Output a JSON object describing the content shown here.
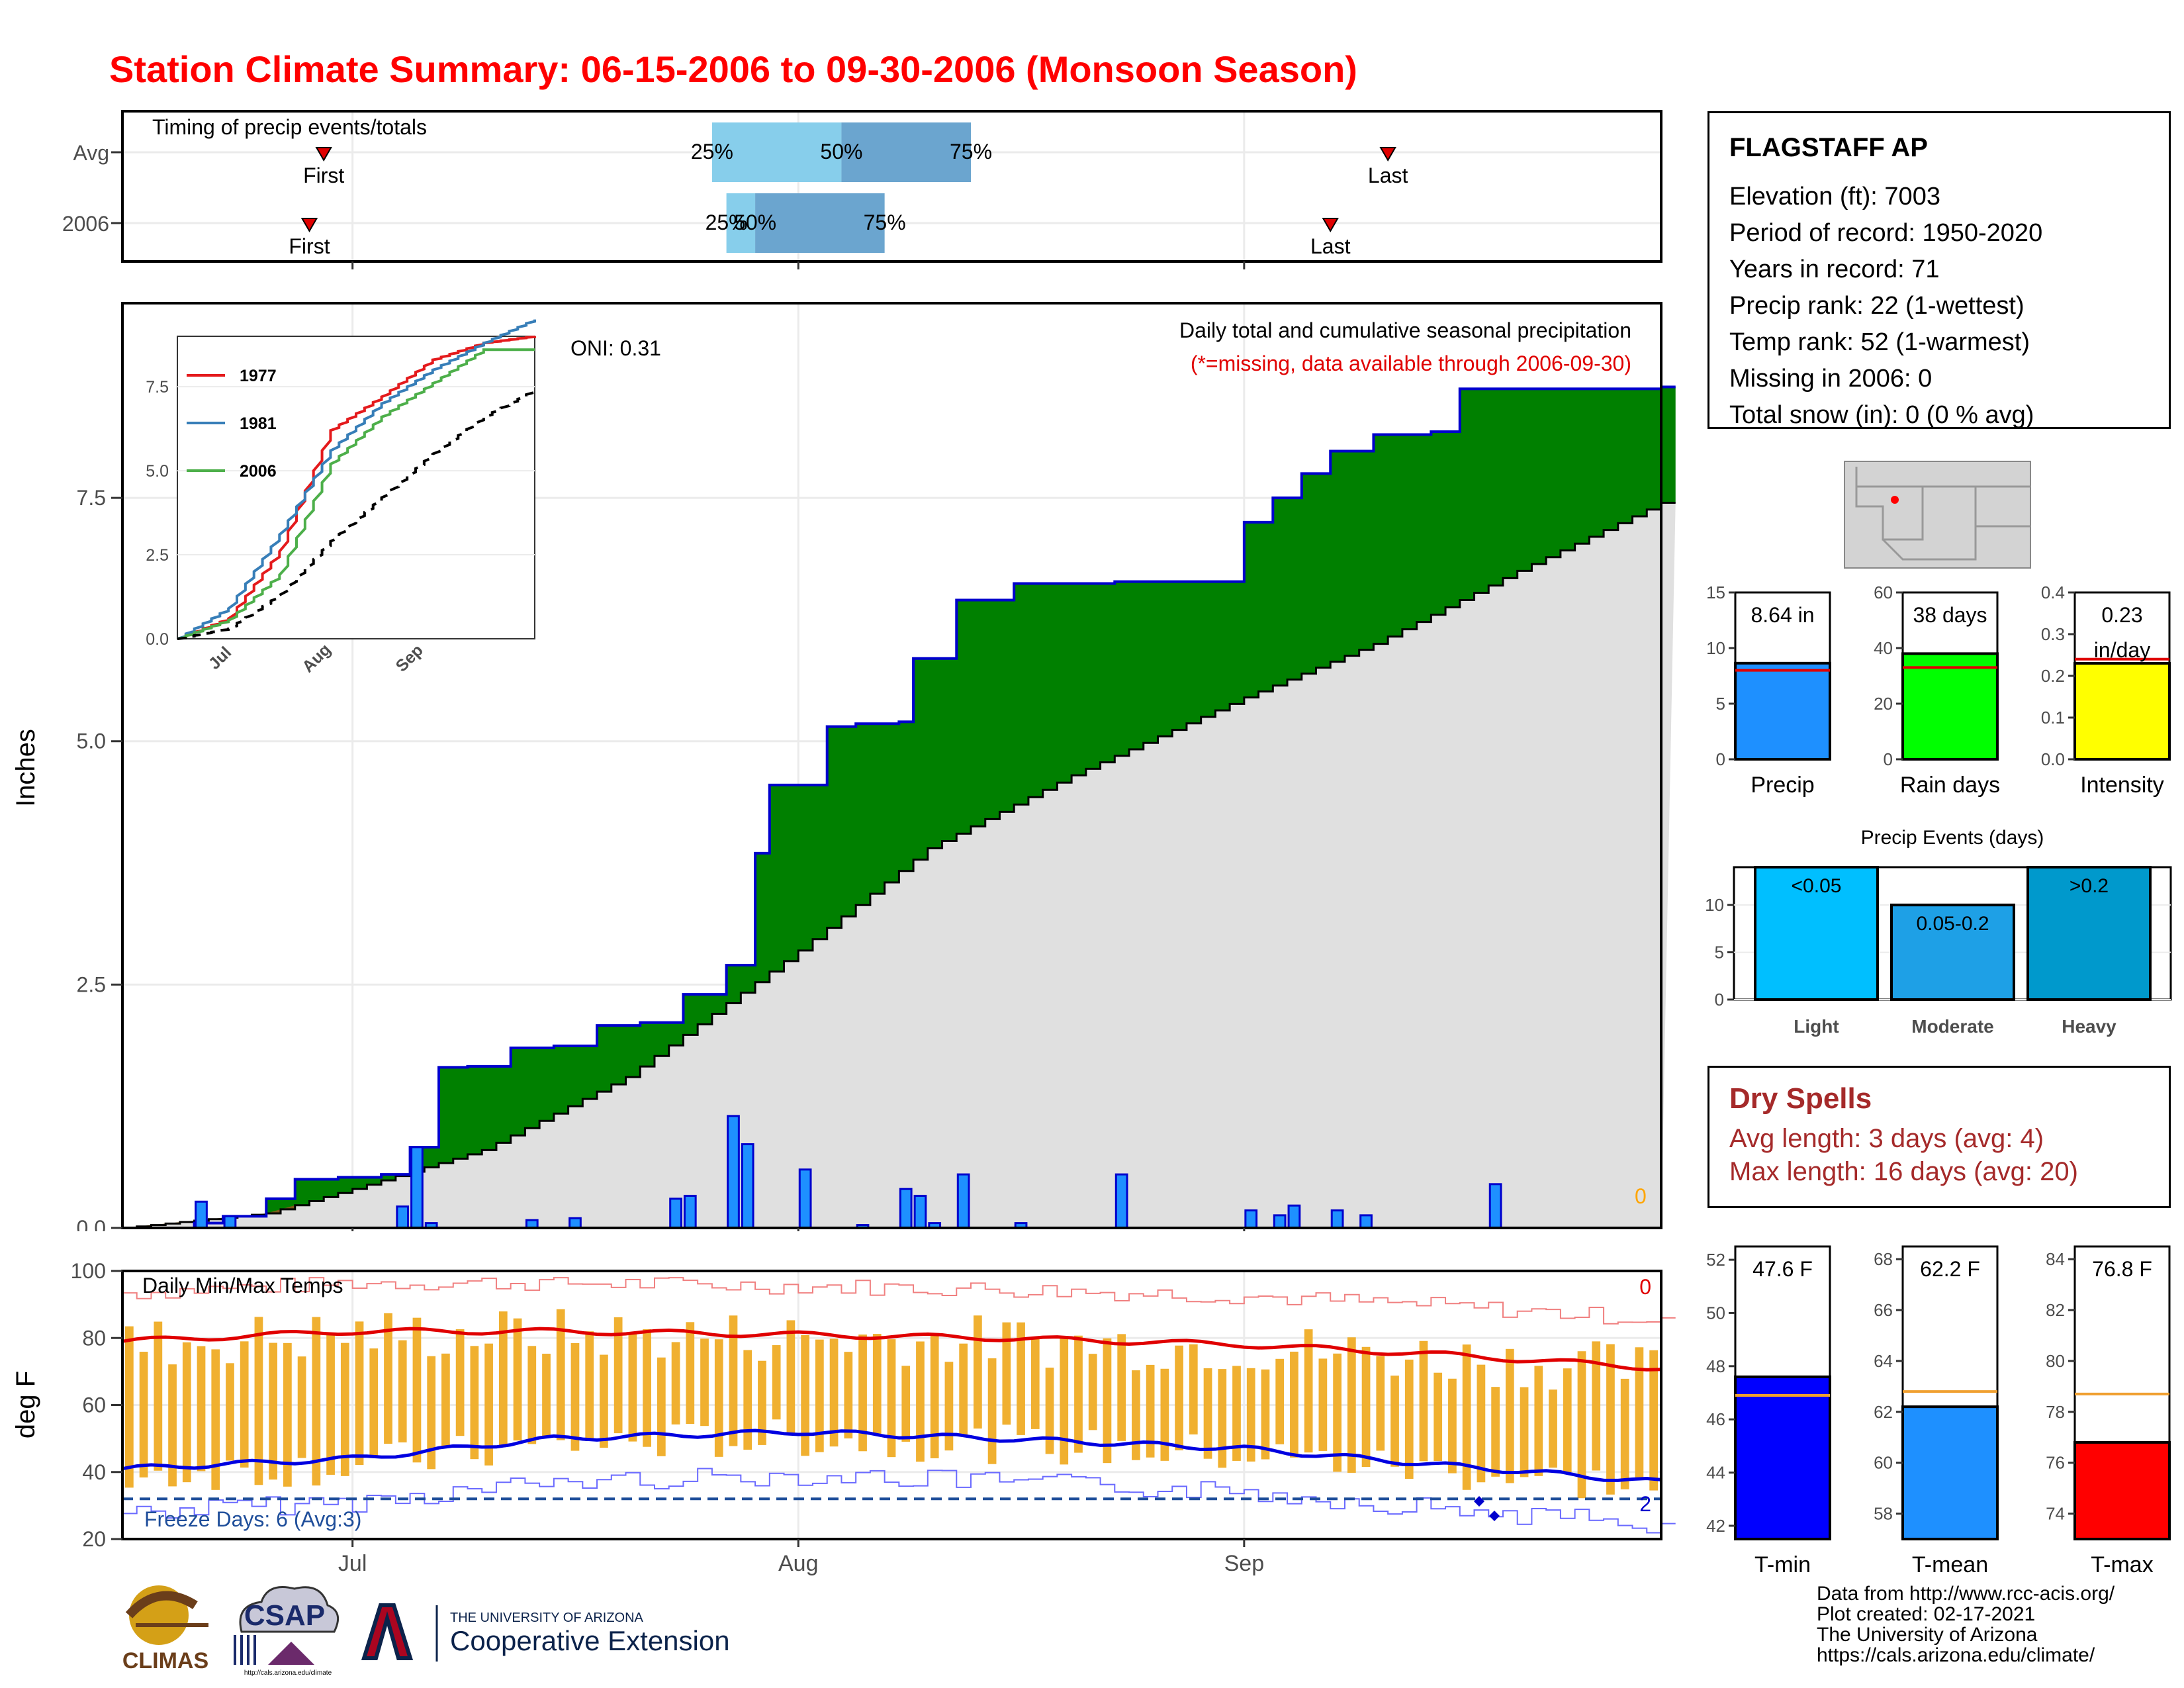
{
  "title": "Station Climate Summary: 06-15-2006 to 09-30-2006 (Monsoon Season)",
  "station": {
    "name": "FLAGSTAFF AP",
    "lines": [
      "Elevation (ft): 7003",
      "Period of record: 1950-2020",
      "Years in record: 71",
      "Precip rank: 22 (1-wettest)",
      "Temp rank: 52 (1-warmest)",
      "Missing in 2006: 0",
      "Total snow (in): 0 (0 % avg)"
    ]
  },
  "timing": {
    "label": "Timing of precip events/totals",
    "rows": [
      "Avg",
      "2006"
    ],
    "first_label": "First",
    "last_label": "Last",
    "pct_labels": [
      "25%",
      "50%",
      "75%"
    ]
  },
  "main": {
    "ylabel": "Inches",
    "yticks": [
      "0.0",
      "2.5",
      "5.0",
      "7.5"
    ],
    "xticks": [
      "Jul",
      "Aug",
      "Sep"
    ],
    "annotation": "Daily total and cumulative seasonal precipitation",
    "missing_note": "(*=missing, data available through 2006-09-30)",
    "oni": "ONI: 0.31",
    "zero_count": "0"
  },
  "inset": {
    "yticks": [
      "0.0",
      "2.5",
      "5.0",
      "7.5"
    ],
    "xticks": [
      "Jul",
      "Aug",
      "Sep"
    ],
    "legend": [
      {
        "name": "1977",
        "color": "#e41a1c"
      },
      {
        "name": "1981",
        "color": "#377eb8"
      },
      {
        "name": "2006",
        "color": "#4daf4a"
      }
    ]
  },
  "temps": {
    "label": "Daily Min/Max Temps",
    "ylabel": "deg F",
    "yticks": [
      "20",
      "40",
      "60",
      "80",
      "100"
    ],
    "freeze_text": "Freeze Days: 6 (Avg:3)",
    "top_count": "0",
    "bottom_count": "2"
  },
  "bars_precip": {
    "items": [
      {
        "label": "Precip",
        "top": "8.64 in",
        "ticks": [
          "0",
          "5",
          "10",
          "15"
        ]
      },
      {
        "label": "Rain days",
        "top": "38 days",
        "ticks": [
          "0",
          "20",
          "40",
          "60"
        ]
      },
      {
        "label": "Intensity",
        "top": "0.23",
        "top2": "in/day",
        "ticks": [
          "0.0",
          "0.1",
          "0.2",
          "0.3",
          "0.4"
        ]
      }
    ]
  },
  "events": {
    "title": "Precip Events (days)",
    "ticks": [
      "0",
      "5",
      "10"
    ],
    "items": [
      {
        "label": "Light",
        "top": "<0.05"
      },
      {
        "label": "Moderate",
        "top": "0.05-0.2"
      },
      {
        "label": "Heavy",
        "top": ">0.2"
      }
    ]
  },
  "dry": {
    "title": "Dry Spells",
    "avg": "Avg length: 3 days (avg: 4)",
    "max": "Max length: 16 days (avg: 20)"
  },
  "temp_bars": {
    "items": [
      {
        "label": "T-min",
        "top": "47.6 F",
        "ticks": [
          "42",
          "44",
          "46",
          "48",
          "50",
          "52"
        ]
      },
      {
        "label": "T-mean",
        "top": "62.2 F",
        "ticks": [
          "58",
          "60",
          "62",
          "64",
          "66",
          "68"
        ]
      },
      {
        "label": "T-max",
        "top": "76.8 F",
        "ticks": [
          "74",
          "76",
          "78",
          "80",
          "82",
          "84"
        ]
      }
    ]
  },
  "footer": {
    "lines": [
      "Data from http://www.rcc-acis.org/",
      "Plot created: 02-17-2021",
      "The University of Arizona",
      "https://cals.arizona.edu/climate/"
    ]
  },
  "logos": {
    "climas": "CLIMAS",
    "csap": "CSAP",
    "csap_url": "http://cals.arizona.edu/climate",
    "ua_top": "THE UNIVERSITY OF ARIZONA",
    "ua_bottom": "Cooperative Extension"
  },
  "chart_data": [
    {
      "type": "bar",
      "title": "Timing of precip events/totals",
      "categories": [
        "Avg",
        "2006"
      ],
      "series": [
        {
          "name": "25%",
          "values": [
            "2006-07-26",
            "2006-07-27"
          ]
        },
        {
          "name": "50%",
          "values": [
            "2006-08-04",
            "2006-07-29"
          ]
        },
        {
          "name": "75%",
          "values": [
            "2006-08-13",
            "2006-08-07"
          ]
        },
        {
          "name": "First",
          "values": [
            "2006-06-29",
            "2006-06-28"
          ]
        },
        {
          "name": "Last",
          "values": [
            "2006-09-11",
            "2006-09-07"
          ]
        }
      ]
    },
    {
      "type": "area",
      "title": "Daily total and cumulative seasonal precipitation",
      "ylabel": "Inches",
      "ylim": [
        0,
        9.5
      ],
      "x_range": [
        "2006-06-15",
        "2006-09-30"
      ],
      "series": [
        {
          "name": "2006 cumulative",
          "x": [
            "2006-06-15",
            "2006-06-20",
            "2006-06-22",
            "2006-06-25",
            "2006-06-27",
            "2006-06-30",
            "2006-07-03",
            "2006-07-05",
            "2006-07-07",
            "2006-07-09",
            "2006-07-12",
            "2006-07-15",
            "2006-07-18",
            "2006-07-21",
            "2006-07-24",
            "2006-07-27",
            "2006-07-29",
            "2006-07-30",
            "2006-08-03",
            "2006-08-05",
            "2006-08-08",
            "2006-08-09",
            "2006-08-12",
            "2006-08-16",
            "2006-08-23",
            "2006-09-01",
            "2006-09-03",
            "2006-09-05",
            "2006-09-07",
            "2006-09-10",
            "2006-09-14",
            "2006-09-16",
            "2006-09-30"
          ],
          "values": [
            0,
            0.05,
            0.12,
            0.3,
            0.5,
            0.52,
            0.55,
            0.83,
            1.65,
            1.66,
            1.85,
            1.87,
            2.08,
            2.11,
            2.4,
            2.7,
            3.85,
            4.55,
            5.15,
            5.18,
            5.2,
            5.85,
            6.45,
            6.62,
            6.64,
            7.25,
            7.5,
            7.75,
            7.98,
            8.15,
            8.18,
            8.62,
            8.64
          ]
        },
        {
          "name": "Average cumulative",
          "x": [
            "2006-06-15",
            "2006-06-25",
            "2006-07-01",
            "2006-07-10",
            "2006-07-20",
            "2006-08-01",
            "2006-08-10",
            "2006-08-20",
            "2006-09-01",
            "2006-09-10",
            "2006-09-20",
            "2006-09-30"
          ],
          "values": [
            0,
            0.15,
            0.4,
            0.8,
            1.55,
            2.85,
            3.9,
            4.65,
            5.45,
            6.0,
            6.75,
            7.45
          ]
        }
      ],
      "daily_bars": {
        "x": [
          "2006-06-20",
          "2006-06-22",
          "2006-07-04",
          "2006-07-05",
          "2006-07-06",
          "2006-07-13",
          "2006-07-16",
          "2006-07-23",
          "2006-07-24",
          "2006-07-27",
          "2006-07-28",
          "2006-08-01",
          "2006-08-05",
          "2006-08-08",
          "2006-08-09",
          "2006-08-10",
          "2006-08-12",
          "2006-08-16",
          "2006-08-23",
          "2006-09-01",
          "2006-09-03",
          "2006-09-04",
          "2006-09-07",
          "2006-09-09",
          "2006-09-18"
        ],
        "values": [
          0.27,
          0.12,
          0.22,
          0.83,
          0.05,
          0.08,
          0.1,
          0.3,
          0.33,
          1.15,
          0.86,
          0.6,
          0.03,
          0.4,
          0.33,
          0.05,
          0.55,
          0.05,
          0.55,
          0.18,
          0.13,
          0.23,
          0.18,
          0.13,
          0.45
        ]
      }
    },
    {
      "type": "line",
      "title": "",
      "ylim": [
        0,
        9
      ],
      "x": [
        "Jun 15",
        "Jul 1",
        "Jul 15",
        "Aug 1",
        "Aug 15",
        "Sep 1",
        "Sep 15",
        "Sep 30"
      ],
      "series": [
        {
          "name": "1977",
          "values": [
            0,
            0.6,
            2.6,
            6.2,
            7.2,
            8.3,
            8.8,
            9.0
          ]
        },
        {
          "name": "1981",
          "values": [
            0,
            0.9,
            3.1,
            5.6,
            7.0,
            8.0,
            8.8,
            9.5
          ]
        },
        {
          "name": "2006",
          "values": [
            0,
            0.55,
            1.9,
            5.2,
            6.6,
            7.6,
            8.6,
            8.6
          ]
        },
        {
          "name": "average",
          "values": [
            0,
            0.3,
            1.3,
            2.9,
            4.2,
            5.5,
            6.6,
            7.4
          ]
        }
      ]
    },
    {
      "type": "bar",
      "title": "Daily Min/Max Temps",
      "ylabel": "deg F",
      "ylim": [
        20,
        100
      ],
      "x_range": [
        "2006-06-15",
        "2006-09-30"
      ],
      "avg_max": {
        "x": [
          "Jun 15",
          "Jul 1",
          "Jul 15",
          "Aug 1",
          "Aug 15",
          "Sep 1",
          "Sep 15",
          "Sep 30"
        ],
        "values": [
          79,
          82,
          82,
          81,
          80,
          78,
          75,
          71
        ]
      },
      "avg_min": {
        "x": [
          "Jun 15",
          "Jul 1",
          "Jul 15",
          "Aug 1",
          "Aug 15",
          "Sep 1",
          "Sep 15",
          "Sep 30"
        ],
        "values": [
          41,
          44,
          50,
          52,
          50,
          47,
          42,
          37
        ]
      },
      "freeze_threshold": 32
    },
    {
      "type": "bar",
      "categories": [
        "Precip",
        "Rain days",
        "Intensity"
      ],
      "values": [
        8.64,
        38,
        0.23
      ],
      "averages": [
        8.0,
        33,
        0.24
      ]
    },
    {
      "type": "bar",
      "title": "Precip Events (days)",
      "categories": [
        "Light",
        "Moderate",
        "Heavy"
      ],
      "values": [
        14,
        10,
        14
      ],
      "ylim": [
        0,
        14
      ]
    },
    {
      "type": "bar",
      "categories": [
        "T-min",
        "T-mean",
        "T-max"
      ],
      "values": [
        47.6,
        62.2,
        76.8
      ],
      "averages": [
        46.9,
        62.8,
        78.7
      ]
    }
  ]
}
